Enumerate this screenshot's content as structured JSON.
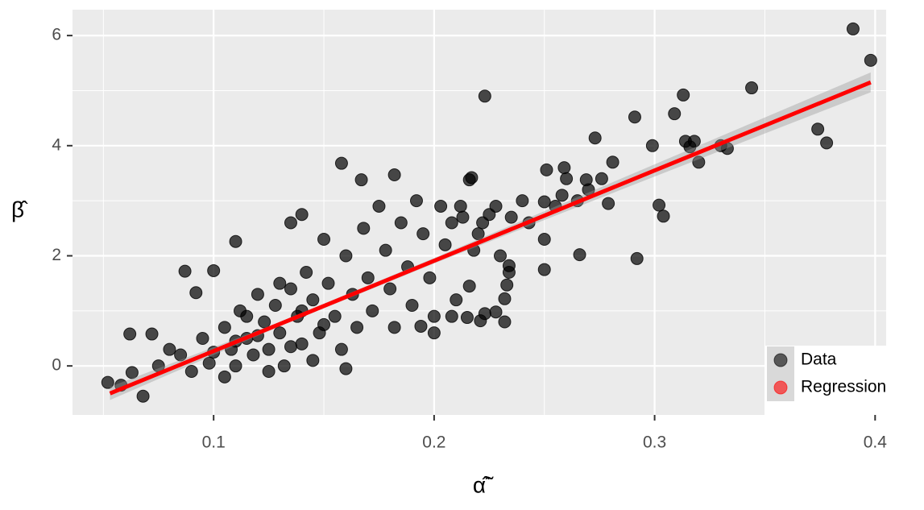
{
  "chart_data": {
    "type": "scatter",
    "x_label": "α̃̂",
    "y_label": "β̂",
    "xlim": [
      0.036,
      0.405
    ],
    "ylim": [
      -0.89,
      6.47
    ],
    "xticks": [
      0.1,
      0.2,
      0.3,
      0.4
    ],
    "yticks": [
      0,
      2,
      4,
      6
    ],
    "grid": true,
    "legend": "bottom-right",
    "series": [
      {
        "name": "Data",
        "color": "#000000",
        "x": [
          0.39,
          0.398,
          0.344,
          0.223,
          0.313,
          0.309,
          0.291,
          0.273,
          0.299,
          0.314,
          0.318,
          0.316,
          0.33,
          0.333,
          0.374,
          0.378,
          0.32,
          0.281,
          0.269,
          0.276,
          0.259,
          0.26,
          0.251,
          0.302,
          0.304,
          0.292,
          0.266,
          0.279,
          0.258,
          0.25,
          0.25,
          0.25,
          0.232,
          0.228,
          0.223,
          0.221,
          0.215,
          0.208,
          0.2,
          0.194,
          0.234,
          0.234,
          0.23,
          0.233,
          0.232,
          0.216,
          0.22,
          0.225,
          0.213,
          0.216,
          0.217,
          0.158,
          0.182,
          0.167,
          0.14,
          0.135,
          0.11,
          0.1,
          0.092,
          0.087,
          0.072,
          0.062,
          0.063,
          0.058,
          0.052,
          0.068,
          0.075,
          0.08,
          0.085,
          0.09,
          0.095,
          0.098,
          0.1,
          0.105,
          0.108,
          0.11,
          0.112,
          0.115,
          0.118,
          0.12,
          0.123,
          0.125,
          0.128,
          0.13,
          0.132,
          0.135,
          0.138,
          0.14,
          0.142,
          0.145,
          0.148,
          0.15,
          0.152,
          0.155,
          0.158,
          0.16,
          0.163,
          0.165,
          0.168,
          0.17,
          0.172,
          0.175,
          0.178,
          0.18,
          0.182,
          0.185,
          0.188,
          0.19,
          0.192,
          0.195,
          0.198,
          0.2,
          0.203,
          0.205,
          0.208,
          0.21,
          0.212,
          0.218,
          0.222,
          0.228,
          0.235,
          0.24,
          0.243,
          0.255,
          0.265,
          0.27,
          0.125,
          0.115,
          0.105,
          0.145,
          0.16,
          0.13,
          0.12,
          0.14,
          0.11,
          0.135,
          0.15
        ],
        "values": [
          6.12,
          5.55,
          5.05,
          4.9,
          4.92,
          4.58,
          4.52,
          4.14,
          4.0,
          4.08,
          4.08,
          3.98,
          4.0,
          3.95,
          4.3,
          4.05,
          3.7,
          3.7,
          3.38,
          3.4,
          3.6,
          3.4,
          3.56,
          2.92,
          2.72,
          1.95,
          2.02,
          2.95,
          3.1,
          2.98,
          2.3,
          1.75,
          0.8,
          0.98,
          0.95,
          0.82,
          0.88,
          0.9,
          0.6,
          0.72,
          1.7,
          1.82,
          2.0,
          1.47,
          1.22,
          1.45,
          2.4,
          2.75,
          2.7,
          3.38,
          3.42,
          3.68,
          3.47,
          3.38,
          2.75,
          2.6,
          2.26,
          1.73,
          1.33,
          1.72,
          0.58,
          0.58,
          -0.12,
          -0.35,
          -0.3,
          -0.55,
          0.0,
          0.3,
          0.2,
          -0.1,
          0.5,
          0.05,
          0.25,
          0.7,
          0.3,
          0.0,
          1.0,
          0.5,
          0.2,
          1.3,
          0.8,
          0.3,
          1.1,
          0.6,
          0.0,
          1.4,
          0.9,
          0.4,
          1.7,
          1.2,
          0.6,
          2.3,
          1.5,
          0.9,
          0.3,
          2.0,
          1.3,
          0.7,
          2.5,
          1.6,
          1.0,
          2.9,
          2.1,
          1.4,
          0.7,
          2.6,
          1.8,
          1.1,
          3.0,
          2.4,
          1.6,
          0.9,
          2.9,
          2.2,
          2.6,
          1.2,
          2.9,
          2.1,
          2.6,
          2.9,
          2.7,
          3.0,
          2.6,
          2.9,
          3.0,
          3.2,
          -0.1,
          0.9,
          -0.2,
          0.1,
          -0.05,
          1.5,
          0.55,
          1.0,
          0.45,
          0.35,
          0.75
        ]
      },
      {
        "name": "Regression",
        "color": "#ff0000",
        "x": [
          0.053,
          0.13,
          0.2,
          0.3,
          0.398
        ],
        "values": [
          -0.5,
          0.76,
          1.91,
          3.55,
          5.15
        ],
        "lower": [
          -0.62,
          0.72,
          1.86,
          3.44,
          4.97
        ],
        "upper": [
          -0.38,
          0.8,
          1.96,
          3.66,
          5.33
        ]
      }
    ]
  }
}
